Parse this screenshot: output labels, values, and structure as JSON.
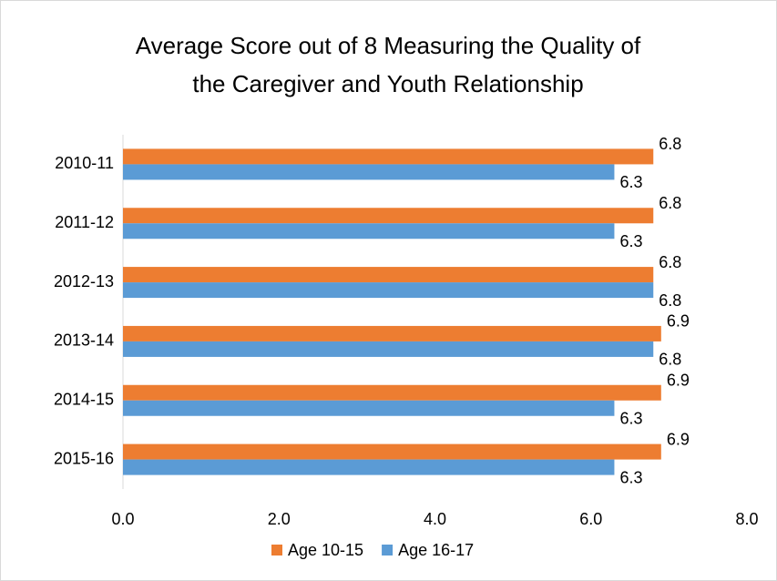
{
  "chart_data": {
    "type": "hbar",
    "title": [
      "Average Score out of 8 Measuring the Quality of",
      "the Caregiver and Youth Relationship"
    ],
    "categories": [
      "2010-11",
      "2011-12",
      "2012-13",
      "2013-14",
      "2014-15",
      "2015-16"
    ],
    "series": [
      {
        "name": "Age 10-15",
        "color": "#ed7d31",
        "values": [
          6.8,
          6.8,
          6.8,
          6.9,
          6.9,
          6.9
        ]
      },
      {
        "name": "Age 16-17",
        "color": "#5b9bd5",
        "values": [
          6.3,
          6.3,
          6.8,
          6.8,
          6.3,
          6.3
        ]
      }
    ],
    "xlim": [
      0,
      8
    ],
    "xticks": [
      {
        "value": 0,
        "label": "0.0"
      },
      {
        "value": 2,
        "label": "2.0"
      },
      {
        "value": 4,
        "label": "4.0"
      },
      {
        "value": 6,
        "label": "6.0"
      },
      {
        "value": 8,
        "label": "8.0"
      }
    ],
    "grid": false,
    "legend": "bottom"
  }
}
